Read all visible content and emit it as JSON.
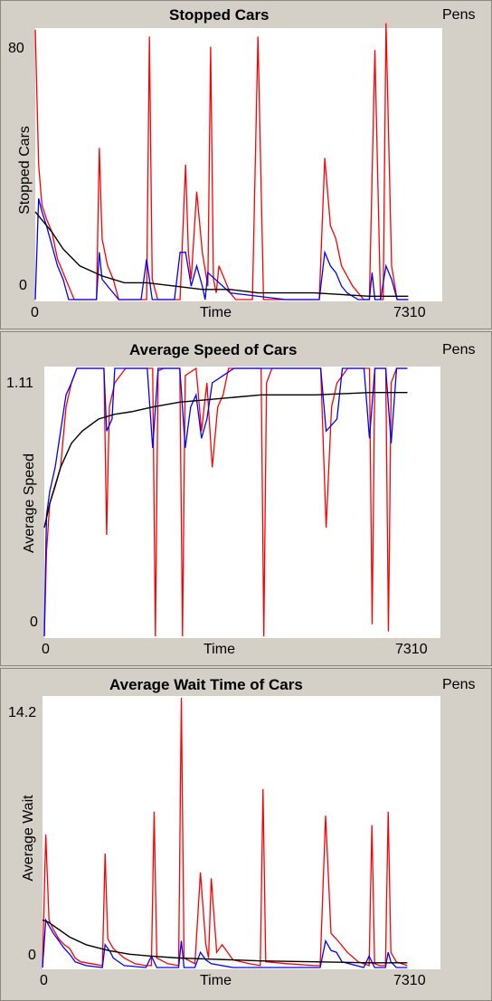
{
  "plots": [
    {
      "title": "Stopped Cars",
      "pens_label": "Pens",
      "ylabel": "Stopped Cars",
      "xlabel": "Time",
      "y_min_label": "0",
      "y_max_label": "80",
      "x_min_label": "0",
      "x_max_label": "7310"
    },
    {
      "title": "Average Speed of Cars",
      "pens_label": "Pens",
      "ylabel": "Average Speed",
      "xlabel": "Time",
      "y_min_label": "0",
      "y_max_label": "1.11",
      "x_min_label": "0",
      "x_max_label": "7310"
    },
    {
      "title": "Average Wait Time of Cars",
      "pens_label": "Pens",
      "ylabel": "Average Wait",
      "xlabel": "Time",
      "y_min_label": "0",
      "y_max_label": "14.2",
      "x_min_label": "0",
      "x_max_label": "7310"
    }
  ],
  "chart_data": [
    {
      "type": "line",
      "title": "Stopped Cars",
      "xlabel": "Time",
      "ylabel": "Stopped Cars",
      "xlim": [
        0,
        7310
      ],
      "ylim": [
        0,
        80
      ],
      "colors": {
        "red": "#ff0000",
        "blue": "#0000ff",
        "black": "#000000"
      },
      "series": [
        {
          "color": "red",
          "x": [
            0,
            60,
            120,
            200,
            300,
            400,
            500,
            600,
            700,
            900,
            1100,
            1150,
            1200,
            1300,
            1400,
            1500,
            1800,
            2000,
            2050,
            2100,
            2200,
            2400,
            2600,
            2700,
            2750,
            2800,
            2900,
            3000,
            3100,
            3150,
            3200,
            3250,
            3300,
            3400,
            3500,
            3600,
            3900,
            4000,
            4100,
            4200,
            4500,
            5100,
            5200,
            5300,
            5400,
            5500,
            5700,
            5900,
            6000,
            6100,
            6200,
            6250,
            6300,
            6400,
            6500,
            6700
          ],
          "y": [
            80,
            40,
            28,
            24,
            20,
            12,
            8,
            4,
            0,
            0,
            0,
            45,
            18,
            10,
            6,
            0,
            0,
            0,
            78,
            6,
            0,
            0,
            0,
            40,
            14,
            6,
            32,
            14,
            4,
            75,
            6,
            2,
            10,
            6,
            2,
            0,
            0,
            78,
            0,
            0,
            0,
            0,
            42,
            22,
            18,
            10,
            4,
            0,
            0,
            74,
            0,
            0,
            82,
            10,
            0,
            0
          ]
        },
        {
          "color": "blue",
          "x": [
            0,
            60,
            120,
            200,
            300,
            400,
            500,
            600,
            800,
            1100,
            1150,
            1200,
            1300,
            1500,
            1900,
            2000,
            2100,
            2500,
            2600,
            2700,
            2800,
            2900,
            3000,
            3050,
            3100,
            3500,
            4500,
            5100,
            5200,
            5300,
            5400,
            5500,
            5600,
            5800,
            6000,
            6050,
            6100,
            6200,
            6300,
            6400,
            6500,
            6700
          ],
          "y": [
            0,
            30,
            26,
            22,
            16,
            10,
            6,
            0,
            0,
            0,
            14,
            6,
            4,
            0,
            0,
            12,
            0,
            0,
            14,
            14,
            4,
            10,
            4,
            0,
            8,
            2,
            0,
            0,
            14,
            10,
            8,
            4,
            2,
            0,
            0,
            8,
            0,
            0,
            10,
            6,
            0,
            0
          ]
        },
        {
          "color": "black",
          "x": [
            0,
            100,
            300,
            500,
            800,
            1200,
            1600,
            2000,
            2500,
            3000,
            3500,
            4000,
            5000,
            6000,
            6700
          ],
          "y": [
            26,
            24,
            20,
            15,
            10,
            7,
            5,
            5,
            4,
            3,
            3,
            2,
            2,
            1,
            1
          ]
        }
      ]
    },
    {
      "type": "line",
      "title": "Average Speed of Cars",
      "xlabel": "Time",
      "ylabel": "Average Speed",
      "xlim": [
        0,
        7310
      ],
      "ylim": [
        0,
        1.11
      ],
      "colors": {
        "red": "#ff0000",
        "blue": "#0000ff",
        "black": "#000000"
      },
      "series": [
        {
          "color": "red",
          "x": [
            0,
            40,
            100,
            200,
            300,
            400,
            500,
            600,
            700,
            900,
            1100,
            1150,
            1200,
            1300,
            1500,
            1700,
            1900,
            2000,
            2050,
            2100,
            2200,
            2400,
            2500,
            2550,
            2600,
            2800,
            2900,
            3000,
            3100,
            3200,
            3300,
            3400,
            3600,
            3800,
            4000,
            4050,
            4100,
            4200,
            4500,
            5000,
            5100,
            5200,
            5300,
            5400,
            5600,
            5800,
            6000,
            6050,
            6100,
            6200,
            6300,
            6350,
            6400,
            6500,
            6700
          ],
          "y": [
            0,
            0.35,
            0.55,
            0.62,
            0.7,
            0.95,
            1.05,
            1.11,
            1.11,
            1.11,
            1.11,
            0.42,
            0.95,
            1.05,
            1.11,
            1.11,
            1.11,
            1.11,
            0,
            1.1,
            1.11,
            1.11,
            1.11,
            0,
            1.08,
            1.11,
            0.85,
            1.05,
            0.7,
            0.95,
            1.0,
            1.11,
            1.11,
            1.11,
            1.11,
            0,
            1.05,
            1.11,
            1.11,
            1.11,
            1.11,
            0.45,
            0.95,
            1.05,
            1.11,
            1.11,
            1.11,
            0.05,
            1.11,
            1.11,
            1.11,
            0.02,
            1.05,
            1.11,
            1.11
          ]
        },
        {
          "color": "blue",
          "x": [
            0,
            40,
            100,
            200,
            400,
            500,
            600,
            800,
            1100,
            1150,
            1250,
            1300,
            1500,
            1900,
            2000,
            2100,
            2500,
            2600,
            2700,
            2800,
            2900,
            3000,
            3100,
            3500,
            5100,
            5200,
            5400,
            5500,
            5900,
            6000,
            6100,
            6300,
            6400,
            6500,
            6700
          ],
          "y": [
            0,
            0.5,
            0.6,
            0.7,
            1.0,
            1.05,
            1.11,
            1.11,
            1.11,
            0.85,
            0.9,
            1.11,
            1.11,
            1.11,
            0.78,
            1.11,
            1.11,
            0.78,
            0.95,
            1.0,
            0.82,
            0.9,
            1.05,
            1.11,
            1.11,
            0.85,
            0.9,
            1.11,
            1.11,
            0.82,
            1.11,
            1.11,
            0.8,
            1.11,
            1.11
          ]
        },
        {
          "color": "black",
          "x": [
            0,
            100,
            300,
            500,
            700,
            1000,
            1300,
            1600,
            2000,
            2500,
            3000,
            3500,
            4000,
            5000,
            6000,
            6700
          ],
          "y": [
            0.45,
            0.55,
            0.7,
            0.8,
            0.85,
            0.9,
            0.92,
            0.93,
            0.95,
            0.97,
            0.98,
            0.99,
            1.0,
            1.0,
            1.01,
            1.01
          ]
        }
      ]
    },
    {
      "type": "line",
      "title": "Average Wait Time of Cars",
      "xlabel": "Time",
      "ylabel": "Average Wait",
      "xlim": [
        0,
        7310
      ],
      "ylim": [
        0,
        14.2
      ],
      "colors": {
        "red": "#ff0000",
        "blue": "#0000ff",
        "black": "#000000"
      },
      "series": [
        {
          "color": "red",
          "x": [
            0,
            60,
            120,
            200,
            300,
            400,
            500,
            600,
            700,
            900,
            1100,
            1150,
            1200,
            1300,
            1500,
            1700,
            1900,
            2000,
            2050,
            2100,
            2300,
            2500,
            2550,
            2600,
            2800,
            2900,
            3000,
            3050,
            3100,
            3200,
            3300,
            3500,
            3800,
            4000,
            4050,
            4100,
            4500,
            5000,
            5100,
            5200,
            5300,
            5400,
            5600,
            5800,
            6000,
            6050,
            6100,
            6200,
            6300,
            6350,
            6400,
            6500,
            6700
          ],
          "y": [
            0,
            7,
            2.5,
            2,
            1.5,
            1.2,
            1,
            0.5,
            0.3,
            0.2,
            0.1,
            6,
            1.5,
            1,
            0.5,
            0.2,
            0.1,
            0.1,
            8.2,
            0.5,
            0.2,
            0.1,
            14.2,
            0.5,
            0.2,
            5,
            1.2,
            0.5,
            4.7,
            0.8,
            1.2,
            0.4,
            0.2,
            0.1,
            9.4,
            0.3,
            0.2,
            0.1,
            0.1,
            8,
            1.8,
            1.5,
            0.8,
            0.3,
            0.1,
            7.5,
            0.2,
            0.1,
            0.1,
            8.2,
            0.8,
            0.3,
            0.1
          ]
        },
        {
          "color": "blue",
          "x": [
            0,
            60,
            120,
            200,
            300,
            400,
            500,
            600,
            800,
            1100,
            1150,
            1250,
            1300,
            1500,
            1900,
            2000,
            2100,
            2500,
            2550,
            2600,
            2800,
            2900,
            3000,
            3100,
            3500,
            5100,
            5200,
            5300,
            5400,
            5500,
            5900,
            6000,
            6100,
            6300,
            6350,
            6400,
            6500,
            6700
          ],
          "y": [
            0,
            2.5,
            2.2,
            1.8,
            1.4,
            1,
            0.7,
            0.3,
            0.1,
            0,
            1.2,
            0.8,
            0.5,
            0.1,
            0,
            0.6,
            0,
            0,
            1.4,
            0,
            0,
            0.8,
            0.4,
            0.2,
            0,
            0,
            1.4,
            0.9,
            0.8,
            0.3,
            0,
            0.6,
            0,
            0,
            0.8,
            0.3,
            0,
            0
          ]
        },
        {
          "color": "black",
          "x": [
            0,
            100,
            300,
            500,
            800,
            1200,
            1600,
            2000,
            2500,
            3000,
            3500,
            4000,
            5000,
            6000,
            6700
          ],
          "y": [
            2.5,
            2.4,
            2,
            1.6,
            1.2,
            0.9,
            0.7,
            0.6,
            0.5,
            0.45,
            0.4,
            0.35,
            0.3,
            0.25,
            0.25
          ]
        }
      ]
    }
  ]
}
